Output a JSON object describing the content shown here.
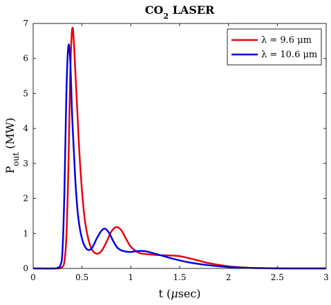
{
  "chart_data": {
    "type": "line",
    "title_main": "CO",
    "title_sub": "2",
    "title_rest": " LASER",
    "xlabel_pre": "t (",
    "xlabel_mu": "μ",
    "xlabel_post": "sec)",
    "ylabel_main": "P",
    "ylabel_sub": "out",
    "ylabel_unit": " (MW)",
    "xlim": [
      0,
      3
    ],
    "ylim": [
      0,
      7
    ],
    "xticks": [
      0,
      0.5,
      1,
      1.5,
      2,
      2.5,
      3
    ],
    "xtick_labels": [
      "0",
      "0.5",
      "1",
      "1.5",
      "2",
      "2.5",
      "3"
    ],
    "yticks": [
      0,
      1,
      2,
      3,
      4,
      5,
      6,
      7
    ],
    "ytick_labels": [
      "0",
      "1",
      "2",
      "3",
      "4",
      "5",
      "6",
      "7"
    ],
    "grid": false,
    "legend_position": "top-right",
    "series": [
      {
        "name": "λ = 9.6 μm",
        "color": "#e8000b",
        "x": [
          0,
          0.25,
          0.28,
          0.3,
          0.32,
          0.34,
          0.36,
          0.38,
          0.4,
          0.42,
          0.45,
          0.48,
          0.52,
          0.56,
          0.6,
          0.65,
          0.7,
          0.75,
          0.8,
          0.85,
          0.9,
          0.95,
          1.0,
          1.05,
          1.1,
          1.2,
          1.3,
          1.4,
          1.5,
          1.6,
          1.7,
          1.8,
          2.0,
          2.2,
          2.4,
          2.6,
          2.8,
          3.0
        ],
        "y": [
          0,
          0,
          0.02,
          0.05,
          0.2,
          0.9,
          2.8,
          5.6,
          6.85,
          6.3,
          4.6,
          3.0,
          1.6,
          0.9,
          0.55,
          0.42,
          0.5,
          0.75,
          1.05,
          1.18,
          1.1,
          0.85,
          0.62,
          0.5,
          0.43,
          0.4,
          0.38,
          0.37,
          0.35,
          0.29,
          0.22,
          0.15,
          0.06,
          0.02,
          0.005,
          0,
          0,
          0
        ]
      },
      {
        "name": "λ = 10.6 μm",
        "color": "#0000e0",
        "x": [
          0,
          0.22,
          0.25,
          0.28,
          0.3,
          0.32,
          0.34,
          0.36,
          0.38,
          0.4,
          0.43,
          0.46,
          0.5,
          0.55,
          0.6,
          0.65,
          0.7,
          0.74,
          0.78,
          0.82,
          0.86,
          0.9,
          0.95,
          1.0,
          1.05,
          1.1,
          1.15,
          1.2,
          1.3,
          1.4,
          1.5,
          1.6,
          1.8,
          2.0,
          2.2,
          2.4,
          2.6,
          2.8,
          3.0
        ],
        "y": [
          0,
          0,
          0.02,
          0.1,
          0.5,
          2.2,
          5.0,
          6.35,
          5.9,
          4.3,
          2.6,
          1.5,
          0.85,
          0.55,
          0.58,
          0.85,
          1.08,
          1.13,
          1.0,
          0.78,
          0.6,
          0.52,
          0.48,
          0.47,
          0.49,
          0.5,
          0.49,
          0.46,
          0.38,
          0.3,
          0.23,
          0.17,
          0.09,
          0.04,
          0.015,
          0.005,
          0,
          0,
          0
        ]
      }
    ]
  }
}
